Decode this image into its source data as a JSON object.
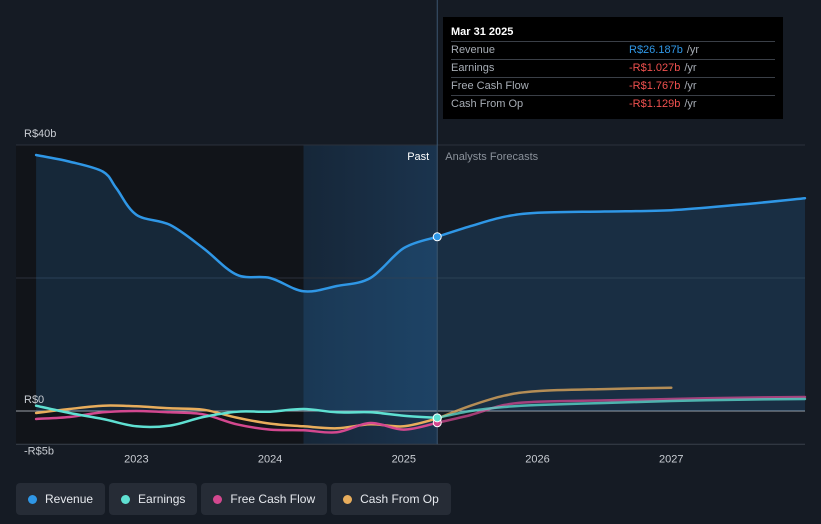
{
  "chart_data": {
    "type": "line",
    "currency_prefix": "R$",
    "y_ticks": [
      {
        "value": 40,
        "label": "R$40b"
      },
      {
        "value": 0,
        "label": "R$0"
      },
      {
        "value": -5,
        "label": "-R$5b"
      }
    ],
    "ylim": [
      -5,
      40
    ],
    "xlim": [
      2022.1,
      2028.0
    ],
    "x_ticks": [
      {
        "value": 2023.0,
        "label": "2023"
      },
      {
        "value": 2024.0,
        "label": "2024"
      },
      {
        "value": 2025.0,
        "label": "2025"
      },
      {
        "value": 2026.0,
        "label": "2026"
      },
      {
        "value": 2027.0,
        "label": "2027"
      }
    ],
    "divider_x": 2025.25,
    "highlight_start_x": 2024.25,
    "past_label": "Past",
    "forecast_label": "Analysts Forecasts",
    "series": [
      {
        "name": "Revenue",
        "color": "#2f97e6",
        "past": [
          [
            2022.25,
            38.5
          ],
          [
            2022.5,
            37.5
          ],
          [
            2022.75,
            36.0
          ],
          [
            2022.85,
            33.5
          ],
          [
            2023.0,
            29.5
          ],
          [
            2023.25,
            28.0
          ],
          [
            2023.5,
            24.5
          ],
          [
            2023.75,
            20.5
          ],
          [
            2024.0,
            20.0
          ],
          [
            2024.25,
            18.0
          ],
          [
            2024.5,
            18.8
          ],
          [
            2024.75,
            20.0
          ],
          [
            2025.0,
            24.5
          ],
          [
            2025.25,
            26.2
          ]
        ],
        "forecast": [
          [
            2025.25,
            26.2
          ],
          [
            2025.5,
            27.8
          ],
          [
            2025.75,
            29.2
          ],
          [
            2026.0,
            29.8
          ],
          [
            2026.5,
            30.0
          ],
          [
            2027.0,
            30.2
          ],
          [
            2027.5,
            31.0
          ],
          [
            2028.0,
            32.0
          ]
        ]
      },
      {
        "name": "Earnings",
        "color": "#5fe0d2",
        "past": [
          [
            2022.25,
            0.8
          ],
          [
            2022.5,
            -0.3
          ],
          [
            2022.75,
            -1.2
          ],
          [
            2023.0,
            -2.3
          ],
          [
            2023.25,
            -2.2
          ],
          [
            2023.5,
            -0.9
          ],
          [
            2023.75,
            -0.1
          ],
          [
            2024.0,
            -0.1
          ],
          [
            2024.25,
            0.3
          ],
          [
            2024.5,
            -0.2
          ],
          [
            2024.75,
            -0.2
          ],
          [
            2025.0,
            -0.7
          ],
          [
            2025.25,
            -1.03
          ]
        ],
        "forecast": [
          [
            2025.25,
            -1.03
          ],
          [
            2025.5,
            0.0
          ],
          [
            2025.75,
            0.6
          ],
          [
            2026.0,
            0.9
          ],
          [
            2026.5,
            1.2
          ],
          [
            2027.0,
            1.5
          ],
          [
            2027.5,
            1.7
          ],
          [
            2028.0,
            1.8
          ]
        ]
      },
      {
        "name": "Free Cash Flow",
        "color": "#d3488f",
        "past": [
          [
            2022.25,
            -1.2
          ],
          [
            2022.5,
            -0.9
          ],
          [
            2022.75,
            -0.2
          ],
          [
            2023.0,
            0.0
          ],
          [
            2023.25,
            -0.2
          ],
          [
            2023.5,
            -0.5
          ],
          [
            2023.75,
            -2.0
          ],
          [
            2024.0,
            -2.8
          ],
          [
            2024.25,
            -2.9
          ],
          [
            2024.5,
            -3.2
          ],
          [
            2024.75,
            -1.8
          ],
          [
            2025.0,
            -2.8
          ],
          [
            2025.25,
            -1.77
          ]
        ],
        "forecast": [
          [
            2025.25,
            -1.77
          ],
          [
            2025.5,
            -0.6
          ],
          [
            2025.75,
            0.9
          ],
          [
            2026.0,
            1.4
          ],
          [
            2026.5,
            1.6
          ],
          [
            2027.0,
            1.8
          ],
          [
            2027.5,
            2.0
          ],
          [
            2028.0,
            2.1
          ]
        ]
      },
      {
        "name": "Cash From Op",
        "color": "#e8ad5c",
        "past": [
          [
            2022.25,
            -0.3
          ],
          [
            2022.5,
            0.3
          ],
          [
            2022.75,
            0.8
          ],
          [
            2023.0,
            0.7
          ],
          [
            2023.25,
            0.4
          ],
          [
            2023.5,
            0.2
          ],
          [
            2023.75,
            -1.0
          ],
          [
            2024.0,
            -1.9
          ],
          [
            2024.25,
            -2.3
          ],
          [
            2024.5,
            -2.6
          ],
          [
            2024.75,
            -2.0
          ],
          [
            2025.0,
            -2.3
          ],
          [
            2025.25,
            -1.13
          ]
        ],
        "forecast": [
          [
            2025.25,
            -1.13
          ],
          [
            2025.5,
            0.8
          ],
          [
            2025.75,
            2.3
          ],
          [
            2026.0,
            3.0
          ],
          [
            2026.5,
            3.3
          ],
          [
            2027.0,
            3.5
          ]
        ]
      }
    ]
  },
  "tooltip": {
    "date": "Mar 31 2025",
    "rows": [
      {
        "label": "Revenue",
        "value": "R$26.187b",
        "unit": "/yr",
        "color": "#2f97e6"
      },
      {
        "label": "Earnings",
        "value": "-R$1.027b",
        "unit": "/yr",
        "color": "#f0514f"
      },
      {
        "label": "Free Cash Flow",
        "value": "-R$1.767b",
        "unit": "/yr",
        "color": "#f0514f"
      },
      {
        "label": "Cash From Op",
        "value": "-R$1.129b",
        "unit": "/yr",
        "color": "#f0514f"
      }
    ]
  },
  "legend": [
    {
      "label": "Revenue",
      "color": "#2f97e6"
    },
    {
      "label": "Earnings",
      "color": "#5fe0d2"
    },
    {
      "label": "Free Cash Flow",
      "color": "#d3488f"
    },
    {
      "label": "Cash From Op",
      "color": "#e8ad5c"
    }
  ]
}
